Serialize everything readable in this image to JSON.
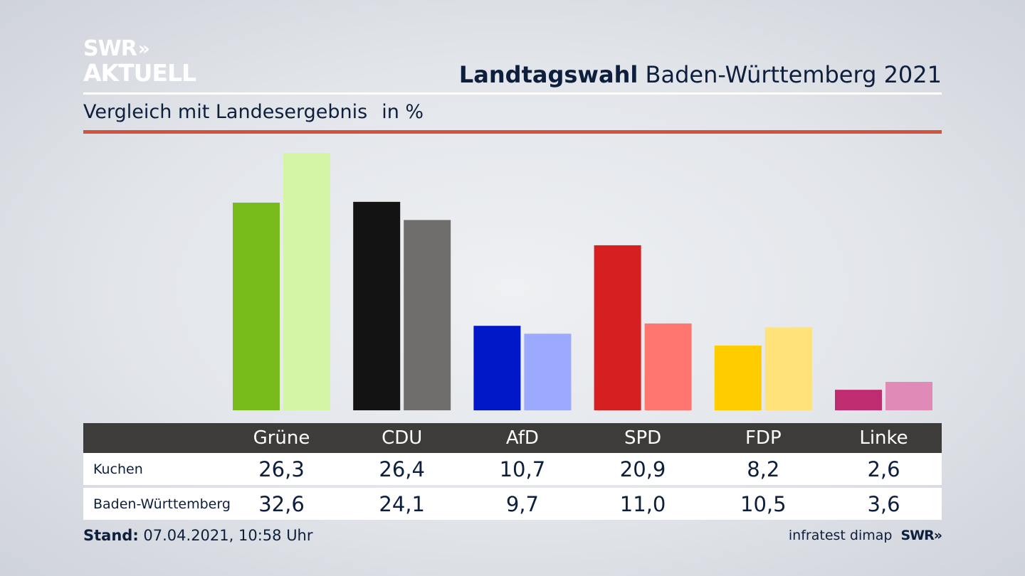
{
  "logo": {
    "line1": "SWR",
    "chevrons": "»",
    "line2": "AKTUELL"
  },
  "header": {
    "title_bold": "Landtagswahl",
    "title_rest": "Baden-Württemberg 2021"
  },
  "subtitle": {
    "text": "Vergleich mit Landesergebnis",
    "unit": "in %"
  },
  "colors": {
    "accent_line": "#d0533f",
    "header_bg": "#3d3c3a",
    "text": "#0d1f3c"
  },
  "chart_data": {
    "type": "bar",
    "categories": [
      "Grüne",
      "CDU",
      "AfD",
      "SPD",
      "FDP",
      "Linke"
    ],
    "series": [
      {
        "name": "Kuchen",
        "values": [
          26.3,
          26.4,
          10.7,
          20.9,
          8.2,
          2.6
        ],
        "colors": [
          "#78bc1c",
          "#131313",
          "#0018c8",
          "#d61f20",
          "#ffcc00",
          "#bf2c70"
        ]
      },
      {
        "name": "Baden-Württemberg",
        "values": [
          32.6,
          24.1,
          9.7,
          11.0,
          10.5,
          3.6
        ],
        "colors": [
          "#d4f5a6",
          "#706e6c",
          "#9ba9ff",
          "#ff7670",
          "#ffe27a",
          "#df8ab7"
        ]
      }
    ],
    "display_values": {
      "Kuchen": [
        "26,3",
        "26,4",
        "10,7",
        "20,9",
        "8,2",
        "2,6"
      ],
      "Baden-Württemberg": [
        "32,6",
        "24,1",
        "9,7",
        "11,0",
        "10,5",
        "3,6"
      ]
    },
    "ylim": [
      0,
      32.6
    ],
    "grid": false
  },
  "footer": {
    "stand_label": "Stand:",
    "stand_value": "07.04.2021, 10:58 Uhr",
    "source": "infratest dimap",
    "brand": "SWR»"
  }
}
